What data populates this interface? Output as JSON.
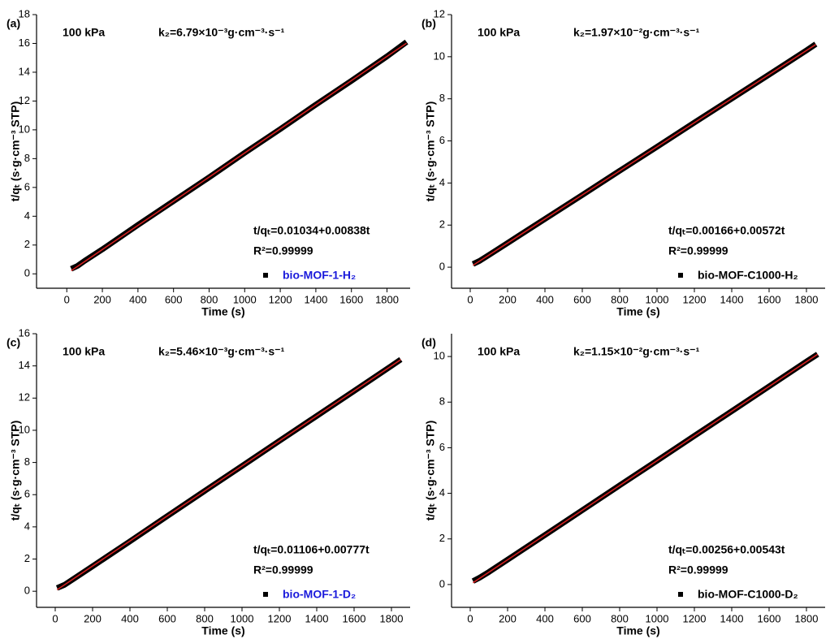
{
  "chart_data": [
    {
      "type": "line",
      "panel_label": "(a)",
      "condition": "100 kPa",
      "rate_constant": "k₂=6.79×10⁻³g·cm⁻³·s⁻¹",
      "equation": "t/qₜ=0.01034+0.00838t",
      "r_squared": "R²=0.99999",
      "x_label": "Time (s)",
      "y_label": "t/qₜ (s·g·cm⁻³ STP)",
      "xlim": [
        -170,
        1930
      ],
      "xticks": [
        0,
        200,
        400,
        600,
        800,
        1000,
        1200,
        1400,
        1600,
        1800
      ],
      "ylim": [
        -1,
        18
      ],
      "yticks": [
        0,
        2,
        4,
        6,
        8,
        10,
        12,
        14,
        16,
        18
      ],
      "legend_text_color": "#1a1adb",
      "series": [
        {
          "name": "bio-MOF-1-H₂",
          "color": "#000000",
          "x": [
            25,
            60,
            100,
            200,
            400,
            600,
            800,
            1000,
            1200,
            1400,
            1600,
            1800,
            1910
          ],
          "values": [
            0.35,
            0.55,
            0.9,
            1.7,
            3.4,
            5.05,
            6.7,
            8.4,
            10.05,
            11.75,
            13.4,
            15.1,
            16.1
          ]
        }
      ],
      "fit": {
        "color": "#d42020",
        "x": [
          25,
          1910
        ],
        "values": [
          0.22,
          16.02
        ]
      }
    },
    {
      "type": "line",
      "panel_label": "(b)",
      "condition": "100 kPa",
      "rate_constant": "k₂=1.97×10⁻²g·cm⁻³·s⁻¹",
      "equation": "t/qₜ=0.00166+0.00572t",
      "r_squared": "R²=0.99999",
      "x_label": "Time (s)",
      "y_label": "t/qₜ (s·g·cm⁻³ STP)",
      "xlim": [
        -100,
        1900
      ],
      "xticks": [
        0,
        200,
        400,
        600,
        800,
        1000,
        1200,
        1400,
        1600,
        1800
      ],
      "ylim": [
        -1,
        12
      ],
      "yticks": [
        0,
        2,
        4,
        6,
        8,
        10,
        12
      ],
      "legend_text_color": "#000000",
      "series": [
        {
          "name": "bio-MOF-C1000-H₂",
          "color": "#000000",
          "x": [
            15,
            50,
            100,
            200,
            400,
            600,
            800,
            1000,
            1200,
            1400,
            1600,
            1800,
            1850
          ],
          "values": [
            0.15,
            0.3,
            0.58,
            1.15,
            2.29,
            3.43,
            4.58,
            5.72,
            6.87,
            8.01,
            9.15,
            10.3,
            10.6
          ]
        }
      ],
      "fit": {
        "color": "#d42020",
        "x": [
          15,
          1850
        ],
        "values": [
          0.09,
          10.58
        ]
      }
    },
    {
      "type": "line",
      "panel_label": "(c)",
      "condition": "100 kPa",
      "rate_constant": "k₂=5.46×10⁻³g·cm⁻³·s⁻¹",
      "equation": "t/qₜ=0.01106+0.00777t",
      "r_squared": "R²=0.99999",
      "x_label": "Time (s)",
      "y_label": "t/qₜ (s·g·cm⁻³ STP)",
      "xlim": [
        -100,
        1900
      ],
      "xticks": [
        0,
        200,
        400,
        600,
        800,
        1000,
        1200,
        1400,
        1600,
        1800
      ],
      "ylim": [
        -1,
        16
      ],
      "yticks": [
        0,
        2,
        4,
        6,
        8,
        10,
        12,
        14,
        16
      ],
      "legend_text_color": "#1a1adb",
      "series": [
        {
          "name": "bio-MOF-1-D₂",
          "color": "#000000",
          "x": [
            10,
            50,
            100,
            200,
            400,
            600,
            800,
            1000,
            1200,
            1400,
            1600,
            1800,
            1850
          ],
          "values": [
            0.2,
            0.4,
            0.78,
            1.55,
            3.1,
            4.67,
            6.23,
            7.78,
            9.34,
            10.89,
            12.44,
            14.0,
            14.4
          ]
        }
      ],
      "fit": {
        "color": "#d42020",
        "x": [
          10,
          1850
        ],
        "values": [
          0.09,
          14.39
        ]
      }
    },
    {
      "type": "line",
      "panel_label": "(d)",
      "condition": "100 kPa",
      "rate_constant": "k₂=1.15×10⁻²g·cm⁻³·s⁻¹",
      "equation": "t/qₜ=0.00256+0.00543t",
      "r_squared": "R²=0.99999",
      "x_label": "Time (s)",
      "y_label": "t/qₜ (s·g·cm⁻³ STP)",
      "xlim": [
        -100,
        1900
      ],
      "xticks": [
        0,
        200,
        400,
        600,
        800,
        1000,
        1200,
        1400,
        1600,
        1800
      ],
      "ylim": [
        -1,
        11
      ],
      "yticks": [
        0,
        2,
        4,
        6,
        8,
        10
      ],
      "legend_text_color": "#000000",
      "series": [
        {
          "name": "bio-MOF-C1000-D₂",
          "color": "#000000",
          "x": [
            15,
            50,
            100,
            200,
            400,
            600,
            800,
            1000,
            1200,
            1400,
            1600,
            1800,
            1860
          ],
          "values": [
            0.15,
            0.3,
            0.55,
            1.09,
            2.17,
            3.26,
            4.35,
            5.43,
            6.52,
            7.6,
            8.69,
            9.78,
            10.1
          ]
        }
      ],
      "fit": {
        "color": "#d42020",
        "x": [
          15,
          1860
        ],
        "values": [
          0.08,
          10.1
        ]
      }
    }
  ]
}
